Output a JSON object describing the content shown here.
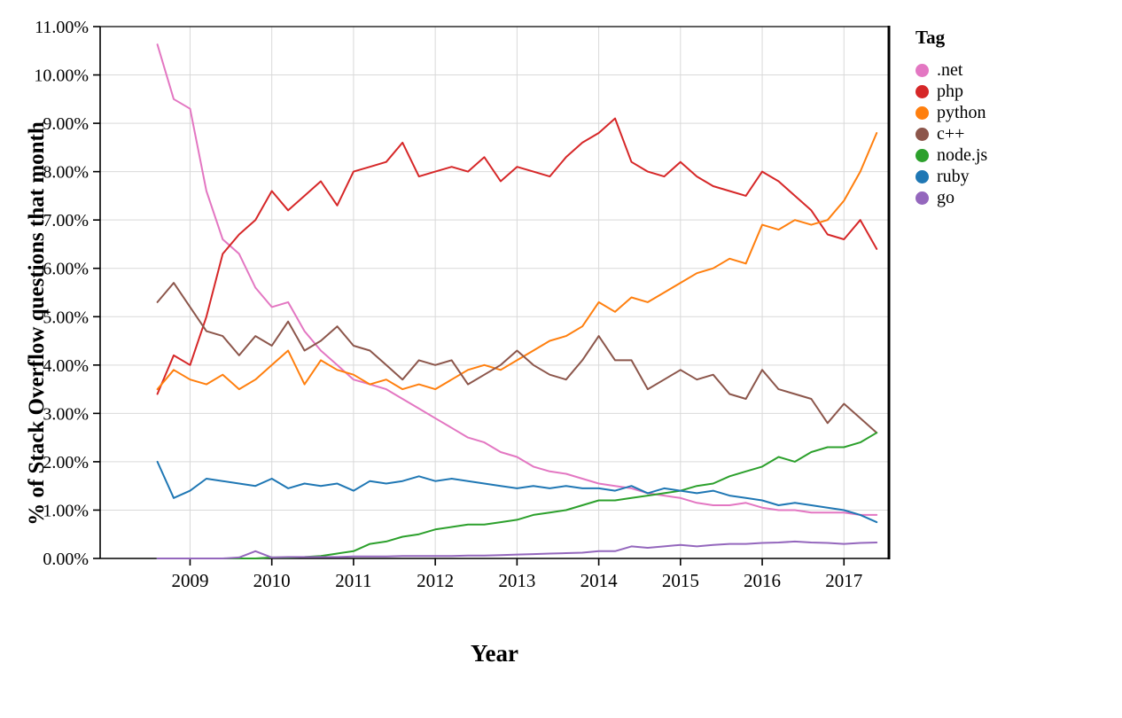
{
  "chart_data": {
    "type": "line",
    "title": "",
    "xlabel": "Year",
    "ylabel": "% of Stack Overflow questions that month",
    "legend_title": "Tag",
    "legend_position": "right",
    "grid": true,
    "xlim": [
      2007.9,
      2017.55
    ],
    "ylim": [
      0,
      11
    ],
    "xticks": [
      2009,
      2010,
      2011,
      2012,
      2013,
      2014,
      2015,
      2016,
      2017
    ],
    "yticks": [
      0,
      1,
      2,
      3,
      4,
      5,
      6,
      7,
      8,
      9,
      10,
      11
    ],
    "ytick_format": "percent_2dp",
    "x": [
      2008.6,
      2008.8,
      2009.0,
      2009.2,
      2009.4,
      2009.6,
      2009.8,
      2010.0,
      2010.2,
      2010.4,
      2010.6,
      2010.8,
      2011.0,
      2011.2,
      2011.4,
      2011.6,
      2011.8,
      2012.0,
      2012.2,
      2012.4,
      2012.6,
      2012.8,
      2013.0,
      2013.2,
      2013.4,
      2013.6,
      2013.8,
      2014.0,
      2014.2,
      2014.4,
      2014.6,
      2014.8,
      2015.0,
      2015.2,
      2015.4,
      2015.6,
      2015.8,
      2016.0,
      2016.2,
      2016.4,
      2016.6,
      2016.8,
      2017.0,
      2017.2,
      2017.4
    ],
    "series": [
      {
        "name": ".net",
        "color": "#e377c2",
        "values": [
          10.63,
          9.5,
          9.3,
          7.6,
          6.6,
          6.3,
          5.6,
          5.2,
          5.3,
          4.7,
          4.3,
          4.0,
          3.7,
          3.6,
          3.5,
          3.3,
          3.1,
          2.9,
          2.7,
          2.5,
          2.4,
          2.2,
          2.1,
          1.9,
          1.8,
          1.75,
          1.65,
          1.55,
          1.5,
          1.45,
          1.35,
          1.3,
          1.25,
          1.15,
          1.1,
          1.1,
          1.15,
          1.05,
          1.0,
          1.0,
          0.95,
          0.95,
          0.95,
          0.9,
          0.9
        ]
      },
      {
        "name": "php",
        "color": "#d62728",
        "values": [
          3.4,
          4.2,
          4.0,
          5.0,
          6.3,
          6.7,
          7.0,
          7.6,
          7.2,
          7.5,
          7.8,
          7.3,
          8.0,
          8.1,
          8.2,
          8.6,
          7.9,
          8.0,
          8.1,
          8.0,
          8.3,
          7.8,
          8.1,
          8.0,
          7.9,
          8.3,
          8.6,
          8.8,
          9.1,
          8.2,
          8.0,
          7.9,
          8.2,
          7.9,
          7.7,
          7.6,
          7.5,
          8.0,
          7.8,
          7.5,
          7.2,
          6.7,
          6.6,
          7.0,
          6.4
        ]
      },
      {
        "name": "python",
        "color": "#ff7f0e",
        "values": [
          3.5,
          3.9,
          3.7,
          3.6,
          3.8,
          3.5,
          3.7,
          4.0,
          4.3,
          3.6,
          4.1,
          3.9,
          3.8,
          3.6,
          3.7,
          3.5,
          3.6,
          3.5,
          3.7,
          3.9,
          4.0,
          3.9,
          4.1,
          4.3,
          4.5,
          4.6,
          4.8,
          5.3,
          5.1,
          5.4,
          5.3,
          5.5,
          5.7,
          5.9,
          6.0,
          6.2,
          6.1,
          6.9,
          6.8,
          7.0,
          6.9,
          7.0,
          7.4,
          8.0,
          8.8
        ]
      },
      {
        "name": "c++",
        "color": "#8c564b",
        "values": [
          5.3,
          5.7,
          5.2,
          4.7,
          4.6,
          4.2,
          4.6,
          4.4,
          4.9,
          4.3,
          4.5,
          4.8,
          4.4,
          4.3,
          4.0,
          3.7,
          4.1,
          4.0,
          4.1,
          3.6,
          3.8,
          4.0,
          4.3,
          4.0,
          3.8,
          3.7,
          4.1,
          4.6,
          4.1,
          4.1,
          3.5,
          3.7,
          3.9,
          3.7,
          3.8,
          3.4,
          3.3,
          3.9,
          3.5,
          3.4,
          3.3,
          2.8,
          3.2,
          2.9,
          2.6
        ]
      },
      {
        "name": "node.js",
        "color": "#2ca02c",
        "values": [
          0,
          0,
          0,
          0,
          0,
          0,
          0,
          0.02,
          0.02,
          0.03,
          0.05,
          0.1,
          0.15,
          0.3,
          0.35,
          0.45,
          0.5,
          0.6,
          0.65,
          0.7,
          0.7,
          0.75,
          0.8,
          0.9,
          0.95,
          1.0,
          1.1,
          1.2,
          1.2,
          1.25,
          1.3,
          1.35,
          1.4,
          1.5,
          1.55,
          1.7,
          1.8,
          1.9,
          2.1,
          2.0,
          2.2,
          2.3,
          2.3,
          2.4,
          2.6
        ]
      },
      {
        "name": "ruby",
        "color": "#1f77b4",
        "values": [
          2.0,
          1.25,
          1.4,
          1.65,
          1.6,
          1.55,
          1.5,
          1.65,
          1.45,
          1.55,
          1.5,
          1.55,
          1.4,
          1.6,
          1.55,
          1.6,
          1.7,
          1.6,
          1.65,
          1.6,
          1.55,
          1.5,
          1.45,
          1.5,
          1.45,
          1.5,
          1.45,
          1.45,
          1.4,
          1.5,
          1.35,
          1.45,
          1.4,
          1.35,
          1.4,
          1.3,
          1.25,
          1.2,
          1.1,
          1.15,
          1.1,
          1.05,
          1.0,
          0.9,
          0.75
        ]
      },
      {
        "name": "go",
        "color": "#9467bd",
        "values": [
          0,
          0,
          0,
          0,
          0,
          0.02,
          0.15,
          0.02,
          0.03,
          0.03,
          0.03,
          0.03,
          0.04,
          0.04,
          0.04,
          0.05,
          0.05,
          0.05,
          0.05,
          0.06,
          0.06,
          0.07,
          0.08,
          0.09,
          0.1,
          0.11,
          0.12,
          0.15,
          0.15,
          0.25,
          0.22,
          0.25,
          0.28,
          0.25,
          0.28,
          0.3,
          0.3,
          0.32,
          0.33,
          0.35,
          0.33,
          0.32,
          0.3,
          0.32,
          0.33
        ]
      }
    ]
  }
}
